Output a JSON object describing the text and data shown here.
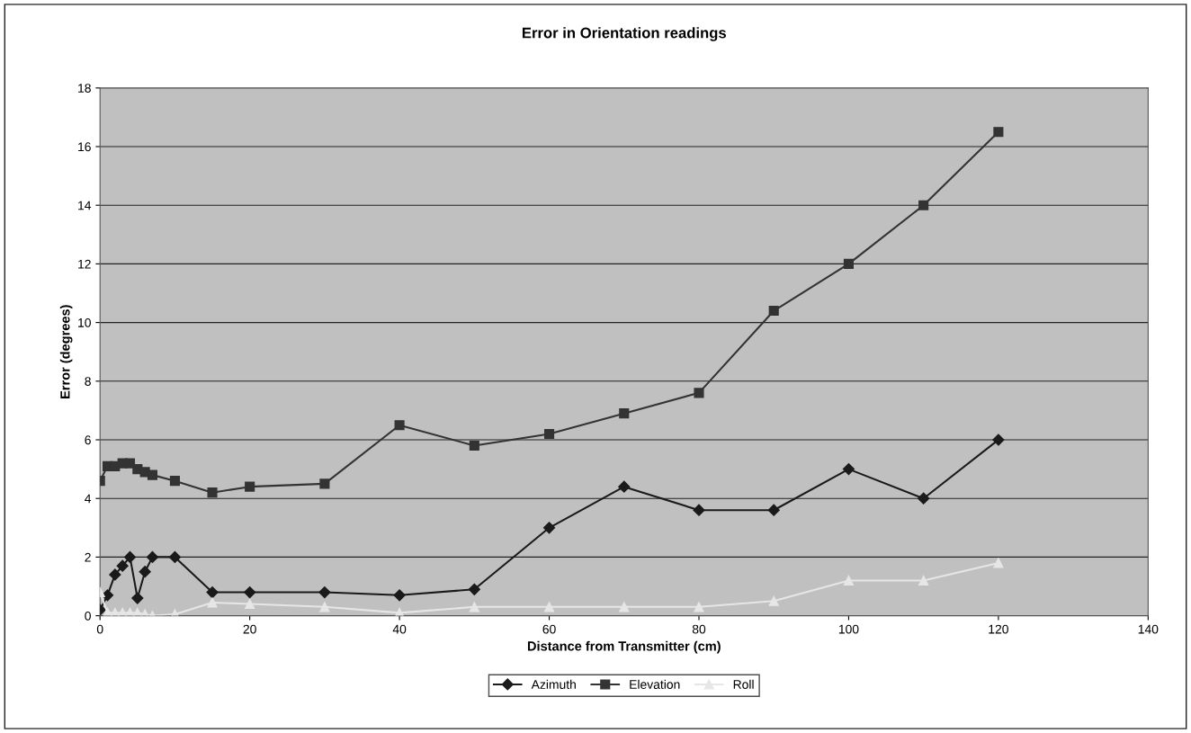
{
  "chart_data": {
    "type": "line",
    "title": "Error in Orientation readings",
    "xlabel": "Distance from Transmitter (cm)",
    "ylabel": "Error (degrees)",
    "x": [
      0,
      1,
      2,
      3,
      4,
      5,
      6,
      7,
      10,
      15,
      20,
      30,
      40,
      50,
      60,
      70,
      80,
      90,
      100,
      110,
      120
    ],
    "series": [
      {
        "name": "Azimuth",
        "color": "#1a1a1a",
        "marker": "diamond",
        "values": [
          0.2,
          0.7,
          1.4,
          1.7,
          2.0,
          0.6,
          1.5,
          2.0,
          2.0,
          0.8,
          0.8,
          0.8,
          0.7,
          0.9,
          3.0,
          4.4,
          3.6,
          3.6,
          5.0,
          4.0,
          6.0
        ]
      },
      {
        "name": "Elevation",
        "color": "#333333",
        "marker": "square",
        "values": [
          4.6,
          5.1,
          5.1,
          5.2,
          5.2,
          5.0,
          4.9,
          4.8,
          4.6,
          4.2,
          4.4,
          4.5,
          6.5,
          5.8,
          6.2,
          6.9,
          7.6,
          10.4,
          12.0,
          14.0,
          16.5
        ]
      },
      {
        "name": "Roll",
        "color": "#e6e6e6",
        "marker": "triangle",
        "values": [
          0.8,
          0.1,
          0.1,
          0.1,
          0.1,
          0.1,
          0.05,
          0,
          0.05,
          0.45,
          0.4,
          0.3,
          0.1,
          0.3,
          0.3,
          0.3,
          0.3,
          0.5,
          1.2,
          1.2,
          1.8
        ]
      }
    ],
    "xlim": [
      0,
      140
    ],
    "xticks": [
      0,
      20,
      40,
      60,
      80,
      100,
      120,
      140
    ],
    "ylim": [
      0,
      18
    ],
    "yticks": [
      0,
      2,
      4,
      6,
      8,
      10,
      12,
      14,
      16,
      18
    ],
    "grid": "y",
    "legend": "bottom"
  }
}
